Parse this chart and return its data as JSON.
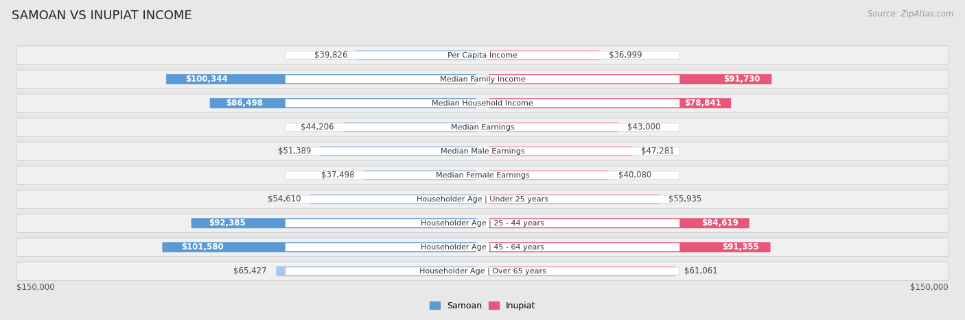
{
  "title": "SAMOAN VS INUPIAT INCOME",
  "source": "Source: ZipAtlas.com",
  "categories": [
    "Per Capita Income",
    "Median Family Income",
    "Median Household Income",
    "Median Earnings",
    "Median Male Earnings",
    "Median Female Earnings",
    "Householder Age | Under 25 years",
    "Householder Age | 25 - 44 years",
    "Householder Age | 45 - 64 years",
    "Householder Age | Over 65 years"
  ],
  "samoan_values": [
    39826,
    100344,
    86498,
    44206,
    51389,
    37498,
    54610,
    92385,
    101580,
    65427
  ],
  "inupiat_values": [
    36999,
    91730,
    78841,
    43000,
    47281,
    40080,
    55935,
    84619,
    91355,
    61061
  ],
  "max_val": 150000,
  "samoan_color_light": "#aac9e8",
  "samoan_color_dark": "#5b9bd5",
  "inupiat_color_light": "#f4abc4",
  "inupiat_color_dark": "#e8577a",
  "bg_color": "#e8e8e8",
  "row_bg_color": "#f5f5f5",
  "row_bg_color2": "#efefef",
  "center_label_bg": "#ffffff",
  "threshold_white_label": 70000,
  "title_fontsize": 13,
  "source_fontsize": 8.5,
  "bar_label_fontsize": 8.5,
  "category_fontsize": 8,
  "legend_fontsize": 9,
  "axis_label_fontsize": 8.5
}
